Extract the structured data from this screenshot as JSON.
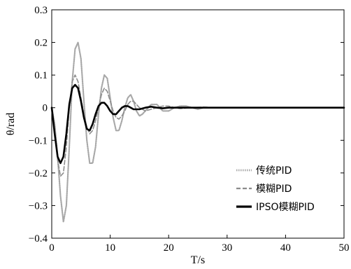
{
  "chart_data": {
    "type": "line",
    "xlabel": "T/s",
    "ylabel": "θ/rad",
    "xlim": [
      0,
      50
    ],
    "ylim": [
      -0.4,
      0.3
    ],
    "x_ticks": [
      "0",
      "10",
      "20",
      "30",
      "40",
      "50"
    ],
    "y_ticks": [
      "0.3",
      "0.2",
      "0.1",
      "0",
      "−0.1",
      "−0.2",
      "−0.3",
      "−0.4"
    ],
    "grid": false,
    "legend_position": "bottom-right",
    "series": [
      {
        "name": "传统PID",
        "color": "#a8a8a8",
        "dash": "dotted",
        "x": [
          0,
          0.5,
          1.0,
          1.5,
          2.0,
          2.5,
          3.0,
          3.5,
          4.0,
          4.5,
          5.0,
          5.5,
          6.0,
          6.5,
          7.0,
          7.5,
          8.0,
          8.5,
          9.0,
          9.5,
          10.0,
          10.5,
          11.0,
          11.5,
          12.0,
          12.5,
          13.0,
          13.5,
          14.0,
          14.5,
          15.0,
          15.5,
          16.0,
          17.0,
          18.0,
          19.0,
          20.0,
          21.0,
          22.0,
          23.0,
          24.0,
          25.0,
          26.0,
          28.0,
          30.0,
          35.0,
          40.0,
          45.0,
          50.0
        ],
        "values": [
          0,
          -0.05,
          -0.15,
          -0.27,
          -0.35,
          -0.3,
          -0.12,
          0.08,
          0.18,
          0.2,
          0.15,
          0.02,
          -0.1,
          -0.17,
          -0.17,
          -0.12,
          -0.02,
          0.06,
          0.1,
          0.09,
          0.03,
          -0.03,
          -0.07,
          -0.07,
          -0.04,
          0.0,
          0.03,
          0.04,
          0.02,
          -0.01,
          -0.025,
          -0.02,
          -0.01,
          0.01,
          0.01,
          -0.01,
          -0.01,
          0.0,
          0.005,
          0.005,
          0.0,
          -0.005,
          0.0,
          0.0,
          0.0,
          0.0,
          0.0,
          0.0,
          0.0
        ]
      },
      {
        "name": "模糊PID",
        "color": "#8c8c8c",
        "dash": "dashed",
        "x": [
          0,
          0.5,
          1.0,
          1.5,
          2.0,
          2.5,
          3.0,
          3.5,
          4.0,
          4.5,
          5.0,
          5.5,
          6.0,
          6.5,
          7.0,
          7.5,
          8.0,
          8.5,
          9.0,
          9.5,
          10.0,
          10.5,
          11.0,
          11.5,
          12.0,
          12.5,
          13.0,
          13.5,
          14.0,
          14.5,
          15.0,
          16.0,
          17.0,
          18.0,
          19.0,
          20.0,
          21.0,
          22.0,
          24.0,
          26.0,
          28.0,
          30.0,
          35.0,
          40.0,
          45.0,
          50.0
        ],
        "values": [
          0,
          -0.07,
          -0.16,
          -0.21,
          -0.2,
          -0.12,
          0.0,
          0.08,
          0.1,
          0.08,
          0.03,
          -0.02,
          -0.06,
          -0.08,
          -0.07,
          -0.04,
          0.0,
          0.04,
          0.06,
          0.05,
          0.02,
          -0.01,
          -0.03,
          -0.035,
          -0.025,
          -0.01,
          0.01,
          0.02,
          0.02,
          0.01,
          0.0,
          -0.01,
          -0.005,
          0.0,
          0.005,
          0.005,
          0.0,
          -0.003,
          0.0,
          0.002,
          0.0,
          0.0,
          0.0,
          0.0,
          0.0,
          0.0
        ]
      },
      {
        "name": "IPSO模糊PID",
        "color": "#000000",
        "dash": "solid",
        "x": [
          0,
          0.5,
          1.0,
          1.5,
          2.0,
          2.5,
          3.0,
          3.5,
          4.0,
          4.5,
          5.0,
          5.5,
          6.0,
          6.5,
          7.0,
          7.5,
          8.0,
          8.5,
          9.0,
          9.5,
          10.0,
          10.5,
          11.0,
          11.5,
          12.0,
          12.5,
          13.0,
          13.5,
          14.0,
          15.0,
          16.0,
          17.0,
          18.0,
          19.0,
          20.0,
          22.0,
          24.0,
          26.0,
          30.0,
          35.0,
          40.0,
          45.0,
          50.0
        ],
        "values": [
          0,
          -0.08,
          -0.15,
          -0.17,
          -0.15,
          -0.08,
          0.01,
          0.06,
          0.07,
          0.06,
          0.02,
          -0.03,
          -0.065,
          -0.07,
          -0.05,
          -0.02,
          0.005,
          0.015,
          0.015,
          0.005,
          -0.01,
          -0.02,
          -0.02,
          -0.01,
          0.0,
          0.005,
          0.005,
          0.0,
          -0.005,
          -0.005,
          0.0,
          0.003,
          0.0,
          -0.002,
          0.0,
          0.0,
          0.0,
          0.0,
          0.0,
          0.0,
          0.0,
          0.0,
          0.0
        ]
      }
    ]
  }
}
